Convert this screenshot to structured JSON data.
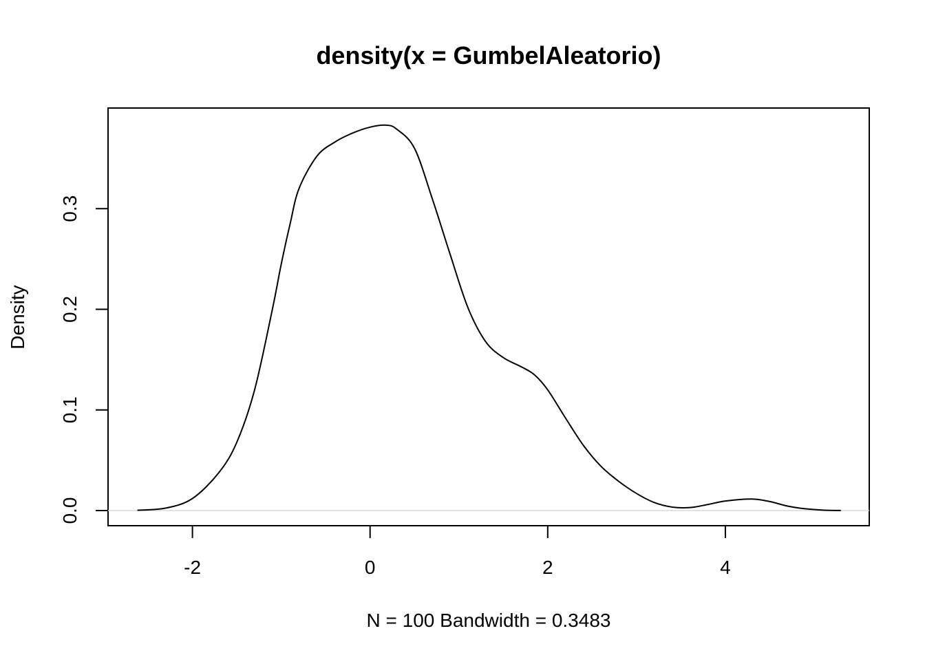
{
  "chart_data": {
    "type": "line",
    "title": "density(x = GumbelAleatorio)",
    "xlabel": "N = 100   Bandwidth = 0.3483",
    "ylabel": "Density",
    "xlim": [
      -2.95,
      5.62
    ],
    "ylim": [
      -0.015,
      0.4
    ],
    "x_ticks": [
      -2,
      0,
      2,
      4
    ],
    "x_tick_labels": [
      "-2",
      "0",
      "2",
      "4"
    ],
    "y_ticks": [
      0.0,
      0.1,
      0.2,
      0.3
    ],
    "y_tick_labels": [
      "0.0",
      "0.1",
      "0.2",
      "0.3"
    ],
    "grid": false,
    "baseline": 0.0,
    "series": [
      {
        "x": [
          -2.62,
          -2.3,
          -2.0,
          -1.7,
          -1.5,
          -1.3,
          -1.1,
          -1.0,
          -0.9,
          -0.8,
          -0.6,
          -0.4,
          -0.2,
          0.0,
          0.18,
          0.3,
          0.5,
          0.7,
          0.9,
          1.1,
          1.3,
          1.5,
          1.7,
          1.85,
          2.0,
          2.2,
          2.4,
          2.6,
          2.8,
          3.0,
          3.2,
          3.4,
          3.6,
          3.8,
          4.0,
          4.3,
          4.5,
          4.7,
          4.9,
          5.1,
          5.3
        ],
        "values": [
          0.0003,
          0.0025,
          0.012,
          0.038,
          0.068,
          0.12,
          0.2,
          0.245,
          0.285,
          0.32,
          0.352,
          0.366,
          0.375,
          0.381,
          0.383,
          0.379,
          0.36,
          0.31,
          0.255,
          0.202,
          0.168,
          0.152,
          0.143,
          0.135,
          0.12,
          0.092,
          0.065,
          0.044,
          0.029,
          0.017,
          0.008,
          0.0035,
          0.003,
          0.006,
          0.0095,
          0.0115,
          0.009,
          0.0045,
          0.0018,
          0.0005,
          0.0001
        ]
      }
    ]
  }
}
